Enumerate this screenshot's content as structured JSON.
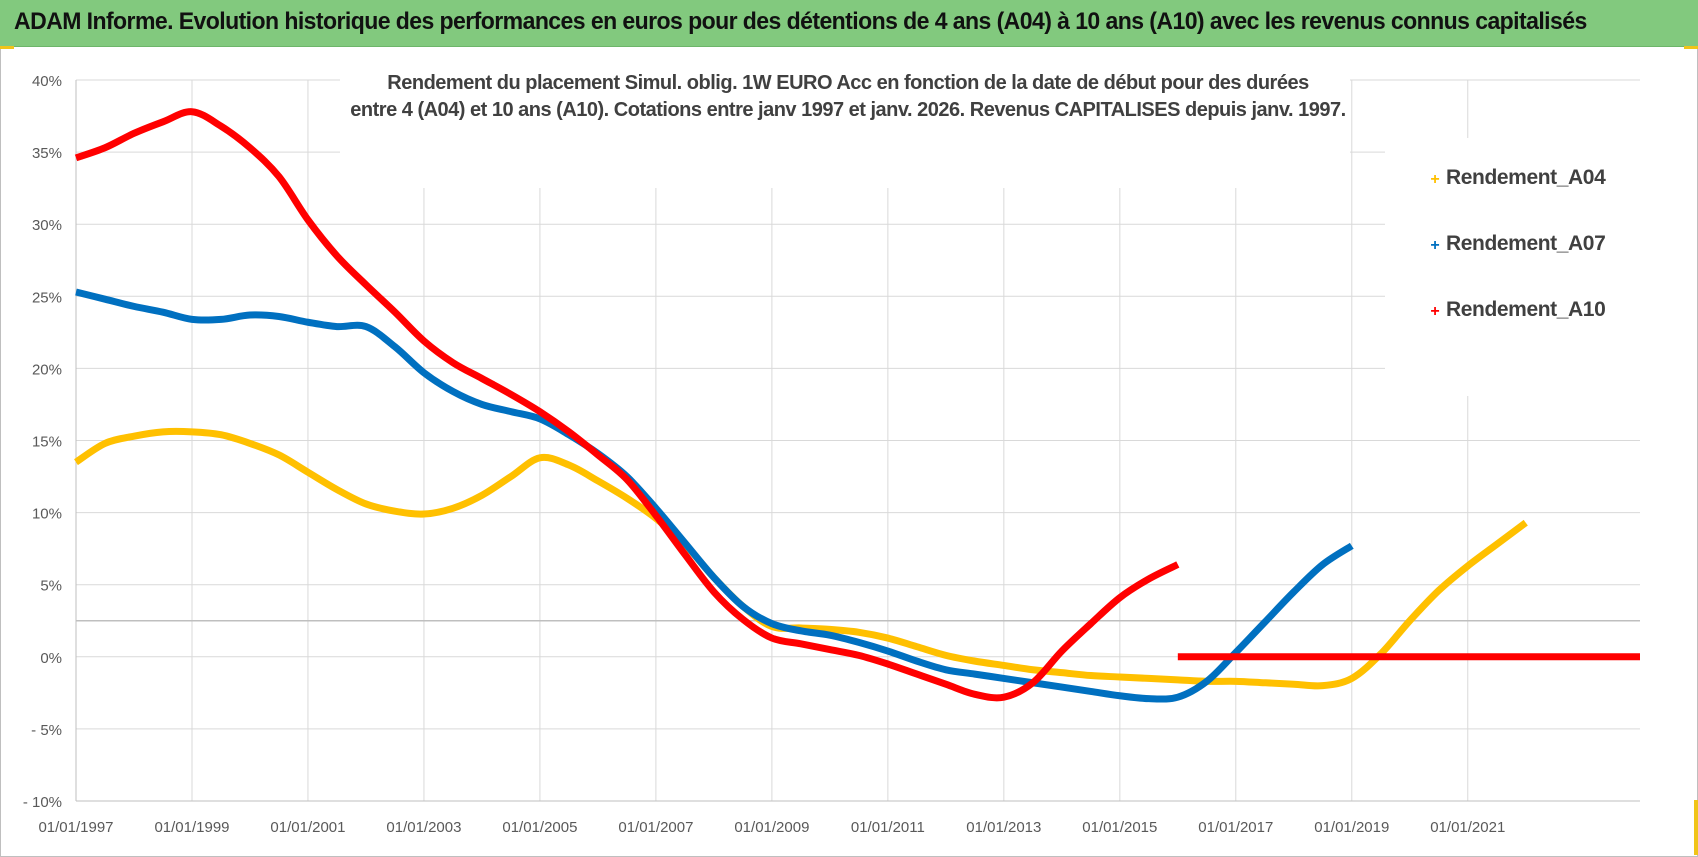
{
  "header": {
    "title": "ADAM Informe. Evolution historique des performances en euros pour des détentions de 4 ans (A04) à 10 ans (A10) avec les revenus connus capitalisés"
  },
  "colors": {
    "banner": "#82c97e",
    "a04": "#ffc000",
    "a07": "#0070c0",
    "a10": "#ff0000",
    "grid": "#d9d9d9"
  },
  "chart_data": {
    "type": "line",
    "title_line1": "Rendement du placement Simul. oblig. 1W EURO Acc en fonction de la date de début pour des durées",
    "title_line2": "entre 4 (A04) et 10 ans (A10). Cotations entre janv 1997 et janv. 2026. Revenus CAPITALISES depuis janv. 1997.",
    "xlabel": "",
    "ylabel": "",
    "x_range": [
      1997,
      2023.97
    ],
    "ylim": [
      -10,
      40
    ],
    "y_ticks": [
      40,
      35,
      30,
      25,
      20,
      15,
      10,
      5,
      0,
      -5,
      -10
    ],
    "y_tick_labels": [
      "40%",
      "35%",
      "30%",
      "25%",
      "20%",
      "15%",
      "10%",
      "5%",
      "0%",
      "- 5%",
      "- 10%"
    ],
    "x_ticks": [
      1997,
      1999,
      2001,
      2003,
      2005,
      2007,
      2009,
      2011,
      2013,
      2015,
      2017,
      2019,
      2021
    ],
    "x_tick_labels": [
      "01/01/1997",
      "01/01/1999",
      "01/01/2001",
      "01/01/2003",
      "01/01/2005",
      "01/01/2007",
      "01/01/2009",
      "01/01/2011",
      "01/01/2013",
      "01/01/2015",
      "01/01/2017",
      "01/01/2019",
      "01/01/2021"
    ],
    "grid": true,
    "legend_position": "top-right",
    "series": [
      {
        "name": "Rendement_A04",
        "color": "#ffc000",
        "x": [
          1997,
          1997.5,
          1998,
          1998.5,
          1999,
          1999.5,
          2000,
          2000.5,
          2001,
          2001.5,
          2002,
          2002.5,
          2003,
          2003.5,
          2004,
          2004.5,
          2005,
          2005.5,
          2006,
          2006.5,
          2007,
          2007.5,
          2008,
          2008.5,
          2009,
          2009.5,
          2010,
          2010.5,
          2011,
          2011.5,
          2012,
          2012.5,
          2013,
          2013.5,
          2014,
          2014.5,
          2015,
          2015.5,
          2016,
          2016.5,
          2017,
          2017.5,
          2018,
          2018.5,
          2019,
          2019.5,
          2020,
          2020.5,
          2021,
          2021.5,
          2022
        ],
        "y": [
          13.5,
          14.8,
          15.3,
          15.6,
          15.6,
          15.4,
          14.8,
          14,
          12.8,
          11.6,
          10.6,
          10.1,
          9.9,
          10.3,
          11.2,
          12.5,
          13.8,
          13.3,
          12.2,
          11,
          9.6,
          7.8,
          5.5,
          3.5,
          2.1,
          2.0,
          1.9,
          1.7,
          1.3,
          0.7,
          0.1,
          -0.3,
          -0.6,
          -0.9,
          -1.1,
          -1.3,
          -1.4,
          -1.5,
          -1.6,
          -1.7,
          -1.7,
          -1.8,
          -1.9,
          -2.0,
          -1.5,
          0.2,
          2.5,
          4.6,
          6.3,
          7.8,
          9.3
        ]
      },
      {
        "name": "Rendement_A07",
        "color": "#0070c0",
        "x": [
          1997,
          1997.5,
          1998,
          1998.5,
          1999,
          1999.5,
          2000,
          2000.5,
          2001,
          2001.5,
          2002,
          2002.5,
          2003,
          2003.5,
          2004,
          2004.5,
          2005,
          2005.5,
          2006,
          2006.5,
          2007,
          2007.5,
          2008,
          2008.5,
          2009,
          2009.5,
          2010,
          2010.5,
          2011,
          2011.5,
          2012,
          2012.5,
          2013,
          2013.5,
          2014,
          2014.5,
          2015,
          2015.5,
          2016,
          2016.5,
          2017,
          2017.5,
          2018,
          2018.5,
          2019
        ],
        "y": [
          25.3,
          24.8,
          24.3,
          23.9,
          23.4,
          23.4,
          23.7,
          23.6,
          23.2,
          22.9,
          22.9,
          21.5,
          19.7,
          18.4,
          17.5,
          17,
          16.5,
          15.4,
          14.1,
          12.5,
          10.3,
          7.9,
          5.5,
          3.5,
          2.3,
          1.8,
          1.5,
          1.0,
          0.4,
          -0.3,
          -0.9,
          -1.2,
          -1.5,
          -1.8,
          -2.1,
          -2.4,
          -2.7,
          -2.9,
          -2.8,
          -1.7,
          0.3,
          2.4,
          4.5,
          6.4,
          7.7
        ]
      },
      {
        "name": "Rendement_A10",
        "color": "#ff0000",
        "x": [
          1997,
          1997.5,
          1998,
          1998.5,
          1999,
          1999.5,
          2000,
          2000.5,
          2001,
          2001.5,
          2002,
          2002.5,
          2003,
          2003.5,
          2004,
          2004.5,
          2005,
          2005.5,
          2006,
          2006.5,
          2007,
          2007.5,
          2008,
          2008.5,
          2009,
          2009.5,
          2010,
          2010.5,
          2011,
          2011.5,
          2012,
          2012.5,
          2013,
          2013.5,
          2014,
          2014.5,
          2015,
          2015.5,
          2016
        ],
        "y": [
          34.6,
          35.3,
          36.3,
          37.1,
          37.8,
          36.8,
          35.3,
          33.3,
          30.3,
          27.8,
          25.8,
          23.9,
          21.9,
          20.4,
          19.3,
          18.2,
          17,
          15.6,
          14,
          12.3,
          9.8,
          7.1,
          4.5,
          2.6,
          1.3,
          0.9,
          0.5,
          0.1,
          -0.5,
          -1.2,
          -1.9,
          -2.6,
          -2.8,
          -1.8,
          0.4,
          2.3,
          4.1,
          5.4,
          6.4
        ]
      },
      {
        "name": "Rendement_A10_flat",
        "color": "#ff0000",
        "x": [
          2016,
          2023.97
        ],
        "y": [
          0,
          0
        ]
      }
    ],
    "legend": [
      {
        "label": "Rendement_A04",
        "color": "#ffc000"
      },
      {
        "label": "Rendement_A07",
        "color": "#0070c0"
      },
      {
        "label": "Rendement_A10",
        "color": "#ff0000"
      }
    ]
  }
}
